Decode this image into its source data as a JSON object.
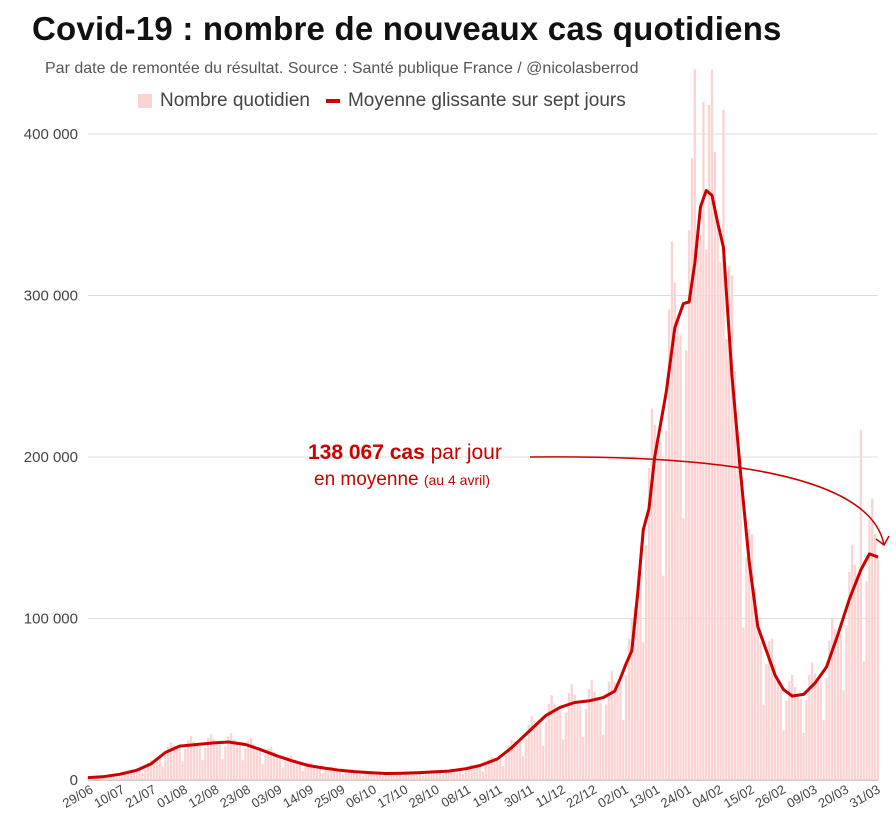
{
  "title": "Covid-19 : nombre de nouveaux cas quotidiens",
  "subtitle": "Par date de remontée du résultat. Source : Santé publique France / @nicolasberrod",
  "legend": {
    "bars": "Nombre quotidien",
    "line": "Moyenne glissante sur sept jours"
  },
  "annotation": {
    "value": "138 067 cas",
    "rest": " par jour",
    "line2": "en moyenne",
    "note": "(au 4 avril)"
  },
  "colors": {
    "bar": "#fbd3d3",
    "line": "#cc0000",
    "grid": "#dddddd",
    "axis_text": "#444444"
  },
  "chart_data": {
    "type": "bar+line",
    "title": "Covid-19 : nombre de nouveaux cas quotidiens",
    "ylim": [
      0,
      400000
    ],
    "grid": true,
    "legend_position": "top",
    "y_ticks": [
      {
        "value": 0,
        "label": "0"
      },
      {
        "value": 100000,
        "label": "100 000"
      },
      {
        "value": 200000,
        "label": "200 000"
      },
      {
        "value": 300000,
        "label": "300 000"
      },
      {
        "value": 400000,
        "label": "400 000"
      }
    ],
    "x_tick_labels": [
      "29/06",
      "10/07",
      "21/07",
      "01/08",
      "12/08",
      "23/08",
      "03/09",
      "14/09",
      "25/09",
      "06/10",
      "17/10",
      "28/10",
      "08/11",
      "19/11",
      "30/11",
      "11/12",
      "22/12",
      "02/01",
      "13/01",
      "24/01",
      "04/02",
      "15/02",
      "26/02",
      "09/03",
      "20/03",
      "31/03"
    ],
    "series": [
      {
        "name": "Moyenne glissante sur sept jours",
        "kind": "line",
        "points": [
          [
            0,
            1500
          ],
          [
            5,
            2000
          ],
          [
            11,
            3500
          ],
          [
            17,
            6000
          ],
          [
            22,
            10000
          ],
          [
            27,
            17000
          ],
          [
            32,
            21000
          ],
          [
            38,
            22000
          ],
          [
            44,
            23000
          ],
          [
            49,
            23500
          ],
          [
            55,
            22000
          ],
          [
            60,
            19000
          ],
          [
            66,
            15000
          ],
          [
            71,
            12000
          ],
          [
            77,
            9000
          ],
          [
            82,
            7500
          ],
          [
            88,
            6000
          ],
          [
            93,
            5200
          ],
          [
            99,
            4500
          ],
          [
            104,
            4000
          ],
          [
            110,
            4200
          ],
          [
            115,
            4500
          ],
          [
            121,
            5000
          ],
          [
            126,
            5500
          ],
          [
            132,
            7000
          ],
          [
            137,
            9000
          ],
          [
            143,
            13000
          ],
          [
            148,
            20000
          ],
          [
            154,
            30000
          ],
          [
            160,
            40000
          ],
          [
            165,
            45000
          ],
          [
            170,
            48000
          ],
          [
            175,
            49000
          ],
          [
            180,
            51000
          ],
          [
            184,
            55000
          ],
          [
            186,
            63000
          ],
          [
            188,
            72000
          ],
          [
            190,
            80000
          ],
          [
            192,
            115000
          ],
          [
            194,
            155000
          ],
          [
            196,
            168000
          ],
          [
            198,
            200000
          ],
          [
            202,
            240000
          ],
          [
            205,
            280000
          ],
          [
            208,
            295000
          ],
          [
            210,
            296000
          ],
          [
            212,
            320000
          ],
          [
            214,
            355000
          ],
          [
            216,
            365000
          ],
          [
            218,
            362000
          ],
          [
            220,
            345000
          ],
          [
            222,
            330000
          ],
          [
            225,
            250000
          ],
          [
            228,
            190000
          ],
          [
            231,
            135000
          ],
          [
            234,
            95000
          ],
          [
            237,
            80000
          ],
          [
            240,
            65000
          ],
          [
            243,
            56000
          ],
          [
            246,
            52000
          ],
          [
            250,
            53000
          ],
          [
            254,
            60000
          ],
          [
            258,
            70000
          ],
          [
            262,
            90000
          ],
          [
            266,
            112000
          ],
          [
            270,
            130000
          ],
          [
            273,
            140000
          ],
          [
            276,
            138067
          ]
        ]
      },
      {
        "name": "Nombre quotidien",
        "kind": "bar",
        "note": "daily counts fluctuate around the rolling average with weekly seasonality; notable peaks ~420 000 late January, ~217 000 late March"
      }
    ],
    "x_domain_days": [
      0,
      276
    ],
    "annotations": [
      "138 067 cas par jour",
      "en moyenne (au 4 avril)"
    ]
  }
}
